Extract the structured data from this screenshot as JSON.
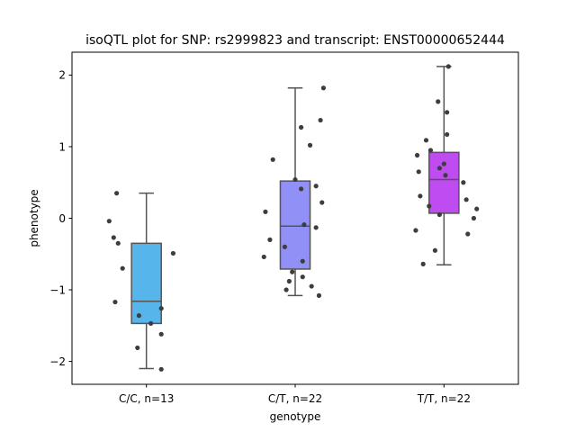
{
  "chart_data": {
    "type": "box",
    "title": "isoQTL plot for SNP: rs2999823 and transcript: ENST00000652444",
    "xlabel": "genotype",
    "ylabel": "phenotype",
    "ylim": [
      -2.32,
      2.32
    ],
    "yticks": [
      {
        "value": 2,
        "label": "2"
      },
      {
        "value": 1,
        "label": "1"
      },
      {
        "value": 0,
        "label": "0"
      },
      {
        "value": -1,
        "label": "−1"
      },
      {
        "value": -2,
        "label": "−2"
      }
    ],
    "grid": false,
    "groups": [
      {
        "label": "C/C, n=13",
        "color": "#56b5ea",
        "box": {
          "whisker_low": -2.1,
          "q1": -1.47,
          "median": -1.16,
          "q3": -0.35,
          "whisker_high": 0.35
        },
        "points": [
          [
            -0.2,
            0.35
          ],
          [
            -0.25,
            -0.04
          ],
          [
            -0.22,
            -0.27
          ],
          [
            -0.19,
            -0.35
          ],
          [
            0.18,
            -0.49
          ],
          [
            -0.16,
            -0.7
          ],
          [
            -0.21,
            -1.17
          ],
          [
            0.1,
            -1.26
          ],
          [
            -0.05,
            -1.36
          ],
          [
            0.03,
            -1.47
          ],
          [
            0.1,
            -1.62
          ],
          [
            -0.06,
            -1.81
          ],
          [
            0.1,
            -2.11
          ]
        ]
      },
      {
        "label": "C/T, n=22",
        "color": "#9190f6",
        "box": {
          "whisker_low": -1.08,
          "q1": -0.71,
          "median": -0.11,
          "q3": 0.52,
          "whisker_high": 1.82
        },
        "points": [
          [
            0.19,
            1.82
          ],
          [
            0.17,
            1.37
          ],
          [
            0.04,
            1.27
          ],
          [
            0.1,
            1.02
          ],
          [
            -0.15,
            0.82
          ],
          [
            0.0,
            0.54
          ],
          [
            0.14,
            0.45
          ],
          [
            0.04,
            0.41
          ],
          [
            0.18,
            0.22
          ],
          [
            -0.2,
            0.09
          ],
          [
            0.06,
            -0.09
          ],
          [
            0.14,
            -0.13
          ],
          [
            -0.17,
            -0.3
          ],
          [
            -0.07,
            -0.4
          ],
          [
            -0.21,
            -0.54
          ],
          [
            0.05,
            -0.6
          ],
          [
            -0.02,
            -0.75
          ],
          [
            0.05,
            -0.82
          ],
          [
            -0.04,
            -0.88
          ],
          [
            0.11,
            -0.95
          ],
          [
            -0.06,
            -1.0
          ],
          [
            0.16,
            -1.08
          ]
        ]
      },
      {
        "label": "T/T, n=22",
        "color": "#be4cf0",
        "box": {
          "whisker_low": -0.65,
          "q1": 0.07,
          "median": 0.54,
          "q3": 0.92,
          "whisker_high": 2.12
        },
        "points": [
          [
            0.03,
            2.12
          ],
          [
            -0.04,
            1.63
          ],
          [
            0.02,
            1.48
          ],
          [
            0.02,
            1.17
          ],
          [
            -0.12,
            1.09
          ],
          [
            -0.09,
            0.95
          ],
          [
            -0.18,
            0.88
          ],
          [
            0.0,
            0.76
          ],
          [
            -0.03,
            0.7
          ],
          [
            -0.17,
            0.65
          ],
          [
            0.01,
            0.6
          ],
          [
            0.13,
            0.5
          ],
          [
            -0.16,
            0.31
          ],
          [
            0.15,
            0.26
          ],
          [
            -0.1,
            0.17
          ],
          [
            0.22,
            0.13
          ],
          [
            -0.03,
            0.05
          ],
          [
            0.2,
            0.0
          ],
          [
            -0.19,
            -0.17
          ],
          [
            0.16,
            -0.22
          ],
          [
            -0.06,
            -0.45
          ],
          [
            -0.14,
            -0.64
          ]
        ]
      }
    ]
  }
}
